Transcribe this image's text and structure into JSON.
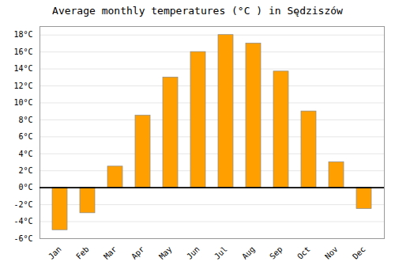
{
  "chart_data": {
    "type": "bar",
    "title": "Average monthly temperatures (°C ) in Sędziszów",
    "categories": [
      "Jan",
      "Feb",
      "Mar",
      "Apr",
      "May",
      "Jun",
      "Jul",
      "Aug",
      "Sep",
      "Oct",
      "Nov",
      "Dec"
    ],
    "values": [
      -5.0,
      -3.0,
      2.5,
      8.5,
      13.0,
      16.0,
      18.0,
      17.0,
      13.7,
      9.0,
      3.0,
      -2.5
    ],
    "color": "#FFA000",
    "ylim": [
      -6,
      19
    ],
    "yticks": [
      {
        "value": -6,
        "label": "-6°C"
      },
      {
        "value": -4,
        "label": "-4°C"
      },
      {
        "value": -2,
        "label": "-2°C"
      },
      {
        "value": 0,
        "label": "0°C"
      },
      {
        "value": 2,
        "label": "2°C"
      },
      {
        "value": 4,
        "label": "4°C"
      },
      {
        "value": 6,
        "label": "6°C"
      },
      {
        "value": 8,
        "label": "8°C"
      },
      {
        "value": 10,
        "label": "10°C"
      },
      {
        "value": 12,
        "label": "12°C"
      },
      {
        "value": 14,
        "label": "14°C"
      },
      {
        "value": 16,
        "label": "16°C"
      },
      {
        "value": 18,
        "label": "18°C"
      }
    ],
    "grid": true
  }
}
